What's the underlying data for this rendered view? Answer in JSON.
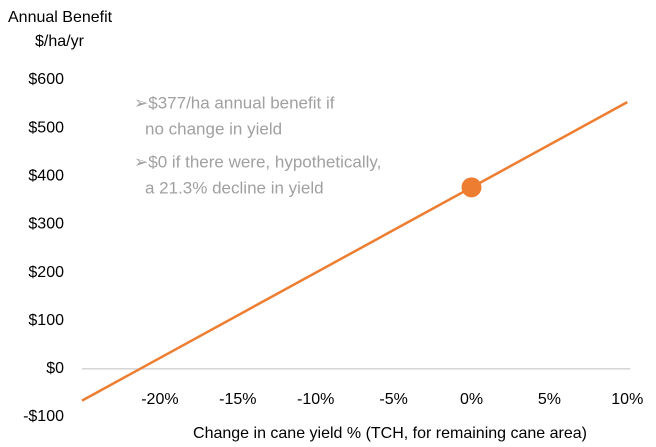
{
  "chart_data": {
    "type": "line",
    "y_label": [
      "Annual Benefit",
      "$/ha/yr"
    ],
    "x_label": "Change in cane yield % (TCH, for remaining cane area)",
    "annotations": [
      "➢$377/ha annual benefit if",
      "no change in yield",
      "➢$0 if there were, hypothetically,",
      "a 21.3% decline in yield"
    ],
    "x": [
      -25,
      10
    ],
    "series": [
      {
        "name": "Annual benefit",
        "color": "#ed7d31",
        "values": [
          -66,
          554
        ]
      }
    ],
    "highlight": {
      "x": 0,
      "value": 377,
      "color": "#ed7d31"
    },
    "xlim": [
      -25,
      10
    ],
    "xticks": [
      {
        "value": -20,
        "label": "-20%"
      },
      {
        "value": -15,
        "label": "-15%"
      },
      {
        "value": -10,
        "label": "-10%"
      },
      {
        "value": -5,
        "label": "-5%"
      },
      {
        "value": 0,
        "label": "0%"
      },
      {
        "value": 5,
        "label": "5%"
      },
      {
        "value": 10,
        "label": "10%"
      }
    ],
    "ylim": [
      -100,
      600
    ],
    "yticks": [
      {
        "value": -100,
        "label": "-$100"
      },
      {
        "value": 0,
        "label": "$0"
      },
      {
        "value": 100,
        "label": "$100"
      },
      {
        "value": 200,
        "label": "$200"
      },
      {
        "value": 300,
        "label": "$300"
      },
      {
        "value": 400,
        "label": "$400"
      },
      {
        "value": 500,
        "label": "$500"
      },
      {
        "value": 600,
        "label": "$600"
      }
    ],
    "grid": false
  }
}
